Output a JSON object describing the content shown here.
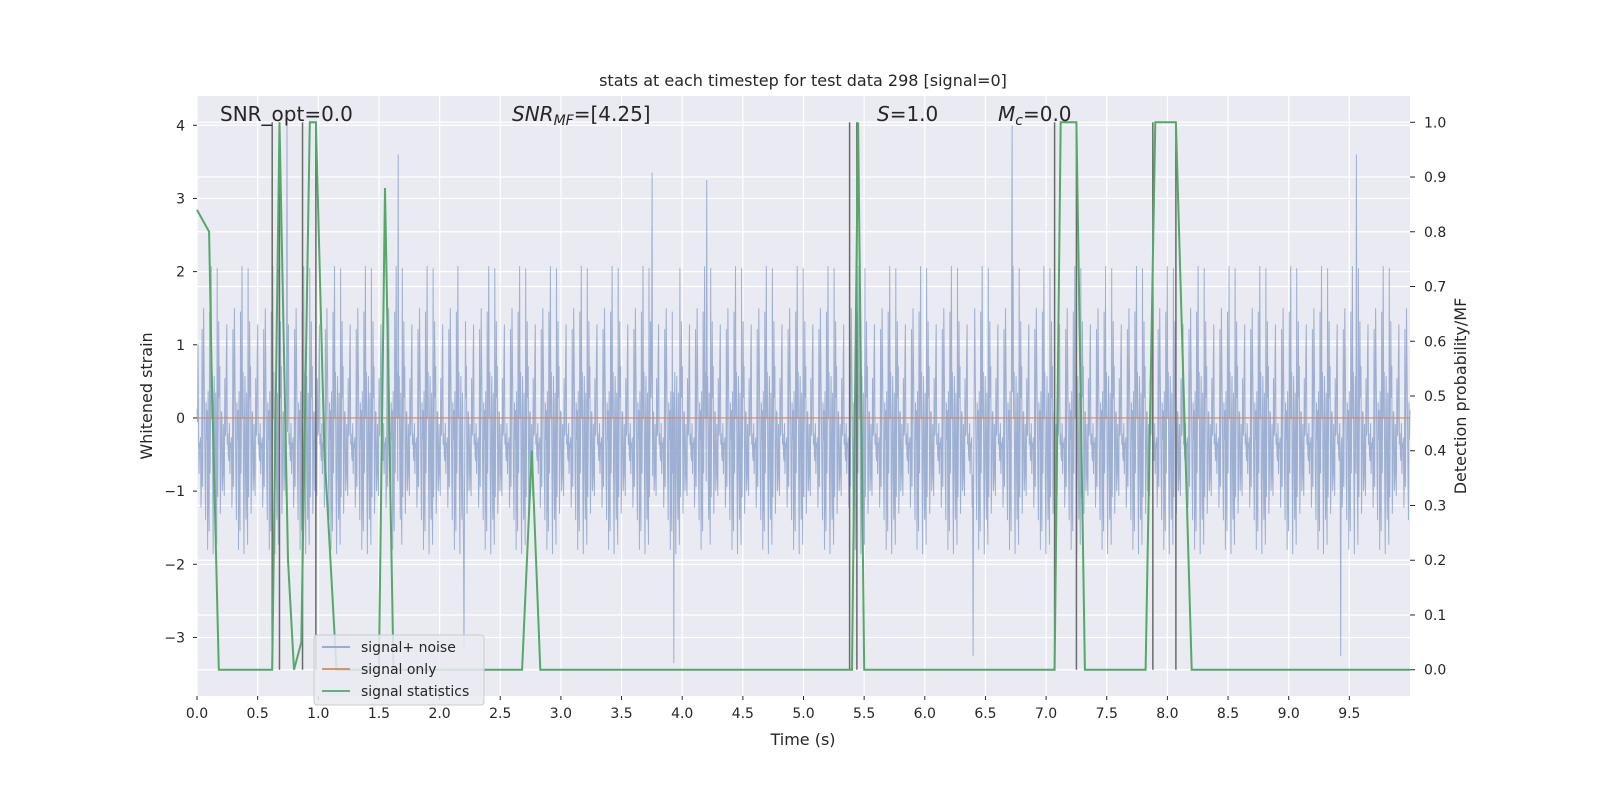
{
  "chart_data": {
    "type": "line",
    "title": "stats at each timestep for test data 298 [signal=0]",
    "xlabel": "Time (s)",
    "ylabel": "Whitened strain",
    "y2label": "Detection probability/MF",
    "xlim": [
      0,
      10
    ],
    "ylim": [
      -3.8,
      4.4
    ],
    "y2lim": [
      -0.048,
      1.048
    ],
    "xticks": [
      0.0,
      0.5,
      1.0,
      1.5,
      2.0,
      2.5,
      3.0,
      3.5,
      4.0,
      4.5,
      5.0,
      5.5,
      6.0,
      6.5,
      7.0,
      7.5,
      8.0,
      8.5,
      9.0,
      9.5
    ],
    "xtick_labels": [
      "0.0",
      "0.5",
      "1.0",
      "1.5",
      "2.0",
      "2.5",
      "3.0",
      "3.5",
      "4.0",
      "4.5",
      "5.0",
      "5.5",
      "6.0",
      "6.5",
      "7.0",
      "7.5",
      "8.0",
      "8.5",
      "9.0",
      "9.5"
    ],
    "yticks": [
      -3,
      -2,
      -1,
      0,
      1,
      2,
      3,
      4
    ],
    "ytick_labels": [
      "−3",
      "−2",
      "−1",
      "0",
      "1",
      "2",
      "3",
      "4"
    ],
    "y2ticks": [
      0.0,
      0.1,
      0.2,
      0.3,
      0.4,
      0.5,
      0.6,
      0.7,
      0.8,
      0.9,
      1.0
    ],
    "y2tick_labels": [
      "0.0",
      "0.1",
      "0.2",
      "0.3",
      "0.4",
      "0.5",
      "0.6",
      "0.7",
      "0.8",
      "0.9",
      "1.0"
    ],
    "grid": true,
    "legend_position": "lower-left",
    "annotations": {
      "snr_opt": "SNR_opt=0.0",
      "snr_mf_sym": "SNR",
      "snr_mf_sub": "MF",
      "snr_mf_val": "=[4.25]",
      "s_sym": "S",
      "s_val": "=1.0",
      "mc_sym": "M",
      "mc_sub": "c",
      "mc_val": "=0.0"
    },
    "series": [
      {
        "name": "signal+ noise",
        "axis": "left",
        "color": "#8fa4cc",
        "envelope_peaks": [
          {
            "x": 0.74,
            "y": 4.0
          },
          {
            "x": 1.66,
            "y": 3.6
          },
          {
            "x": 3.75,
            "y": 3.35
          },
          {
            "x": 4.2,
            "y": 3.25
          },
          {
            "x": 6.72,
            "y": 4.0
          },
          {
            "x": 9.56,
            "y": 3.6
          },
          {
            "x": 3.93,
            "y": -3.35
          },
          {
            "x": 6.4,
            "y": -3.25
          },
          {
            "x": 9.43,
            "y": -3.25
          },
          {
            "x": 2.2,
            "y": -3.15
          }
        ]
      },
      {
        "name": "signal only",
        "axis": "left",
        "color": "#dd8452",
        "x": [
          0,
          10
        ],
        "y": [
          0,
          0
        ]
      },
      {
        "name": "signal statistics",
        "axis": "right",
        "color": "#55a868",
        "x": [
          0.0,
          0.1,
          0.12,
          0.18,
          0.62,
          0.68,
          0.75,
          0.8,
          0.86,
          0.93,
          0.98,
          1.05,
          1.15,
          1.2,
          1.25,
          1.3,
          1.5,
          1.55,
          1.62,
          1.66,
          2.68,
          2.76,
          2.83,
          5.4,
          5.45,
          5.5,
          7.07,
          7.12,
          7.25,
          7.32,
          7.82,
          7.9,
          8.02,
          8.07,
          8.2,
          10.0
        ],
        "y": [
          0.84,
          0.8,
          0.55,
          0.0,
          0.0,
          1.0,
          0.2,
          0.0,
          0.05,
          1.0,
          1.0,
          0.4,
          0.0,
          0.0,
          0.0,
          0.0,
          0.0,
          0.88,
          0.0,
          0.0,
          0.0,
          0.4,
          0.0,
          0.0,
          1.0,
          0.0,
          0.0,
          1.0,
          1.0,
          0.0,
          0.0,
          1.0,
          1.0,
          1.0,
          0.0,
          0.0
        ]
      }
    ],
    "event_markers": {
      "color": "#6a6a6a",
      "x": [
        0.62,
        0.68,
        0.87,
        0.98,
        5.38,
        5.44,
        7.07,
        7.25,
        7.88,
        8.07
      ]
    }
  }
}
